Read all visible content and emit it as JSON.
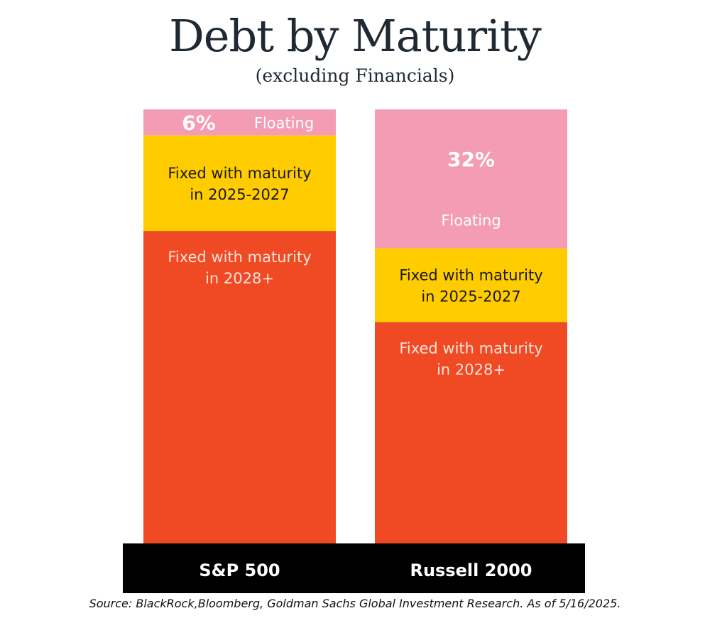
{
  "chart_data": {
    "type": "bar",
    "stacked": true,
    "title": "Debt by Maturity",
    "subtitle": "(excluding Financials)",
    "categories": [
      "S&P 500",
      "Russell 2000"
    ],
    "series": [
      {
        "name": "Floating",
        "color": "#f49cb3",
        "text_color": "#ffffff",
        "values": [
          6,
          32
        ],
        "value_labels": [
          "6%",
          "32%"
        ]
      },
      {
        "name": "Fixed with maturity in 2025-2027",
        "lines": [
          "Fixed with maturity",
          "in 2025-2027"
        ],
        "color": "#ffcc00",
        "text_color": "#1a1a1a",
        "values": [
          22,
          17
        ]
      },
      {
        "name": "Fixed with maturity in 2028+",
        "lines": [
          "Fixed with maturity",
          "in 2028+"
        ],
        "color": "#f04a24",
        "text_color": "#ffe3da",
        "values": [
          72,
          51
        ]
      }
    ],
    "ylim": [
      0,
      100
    ],
    "xlabel": "",
    "ylabel": "",
    "grid": false,
    "legend": "none",
    "axis_band_color": "#000000",
    "axis_label_color": "#ffffff"
  },
  "source_note": "Source: BlackRock,Bloomberg, Goldman Sachs Global Investment Research. As of 5/16/2025."
}
